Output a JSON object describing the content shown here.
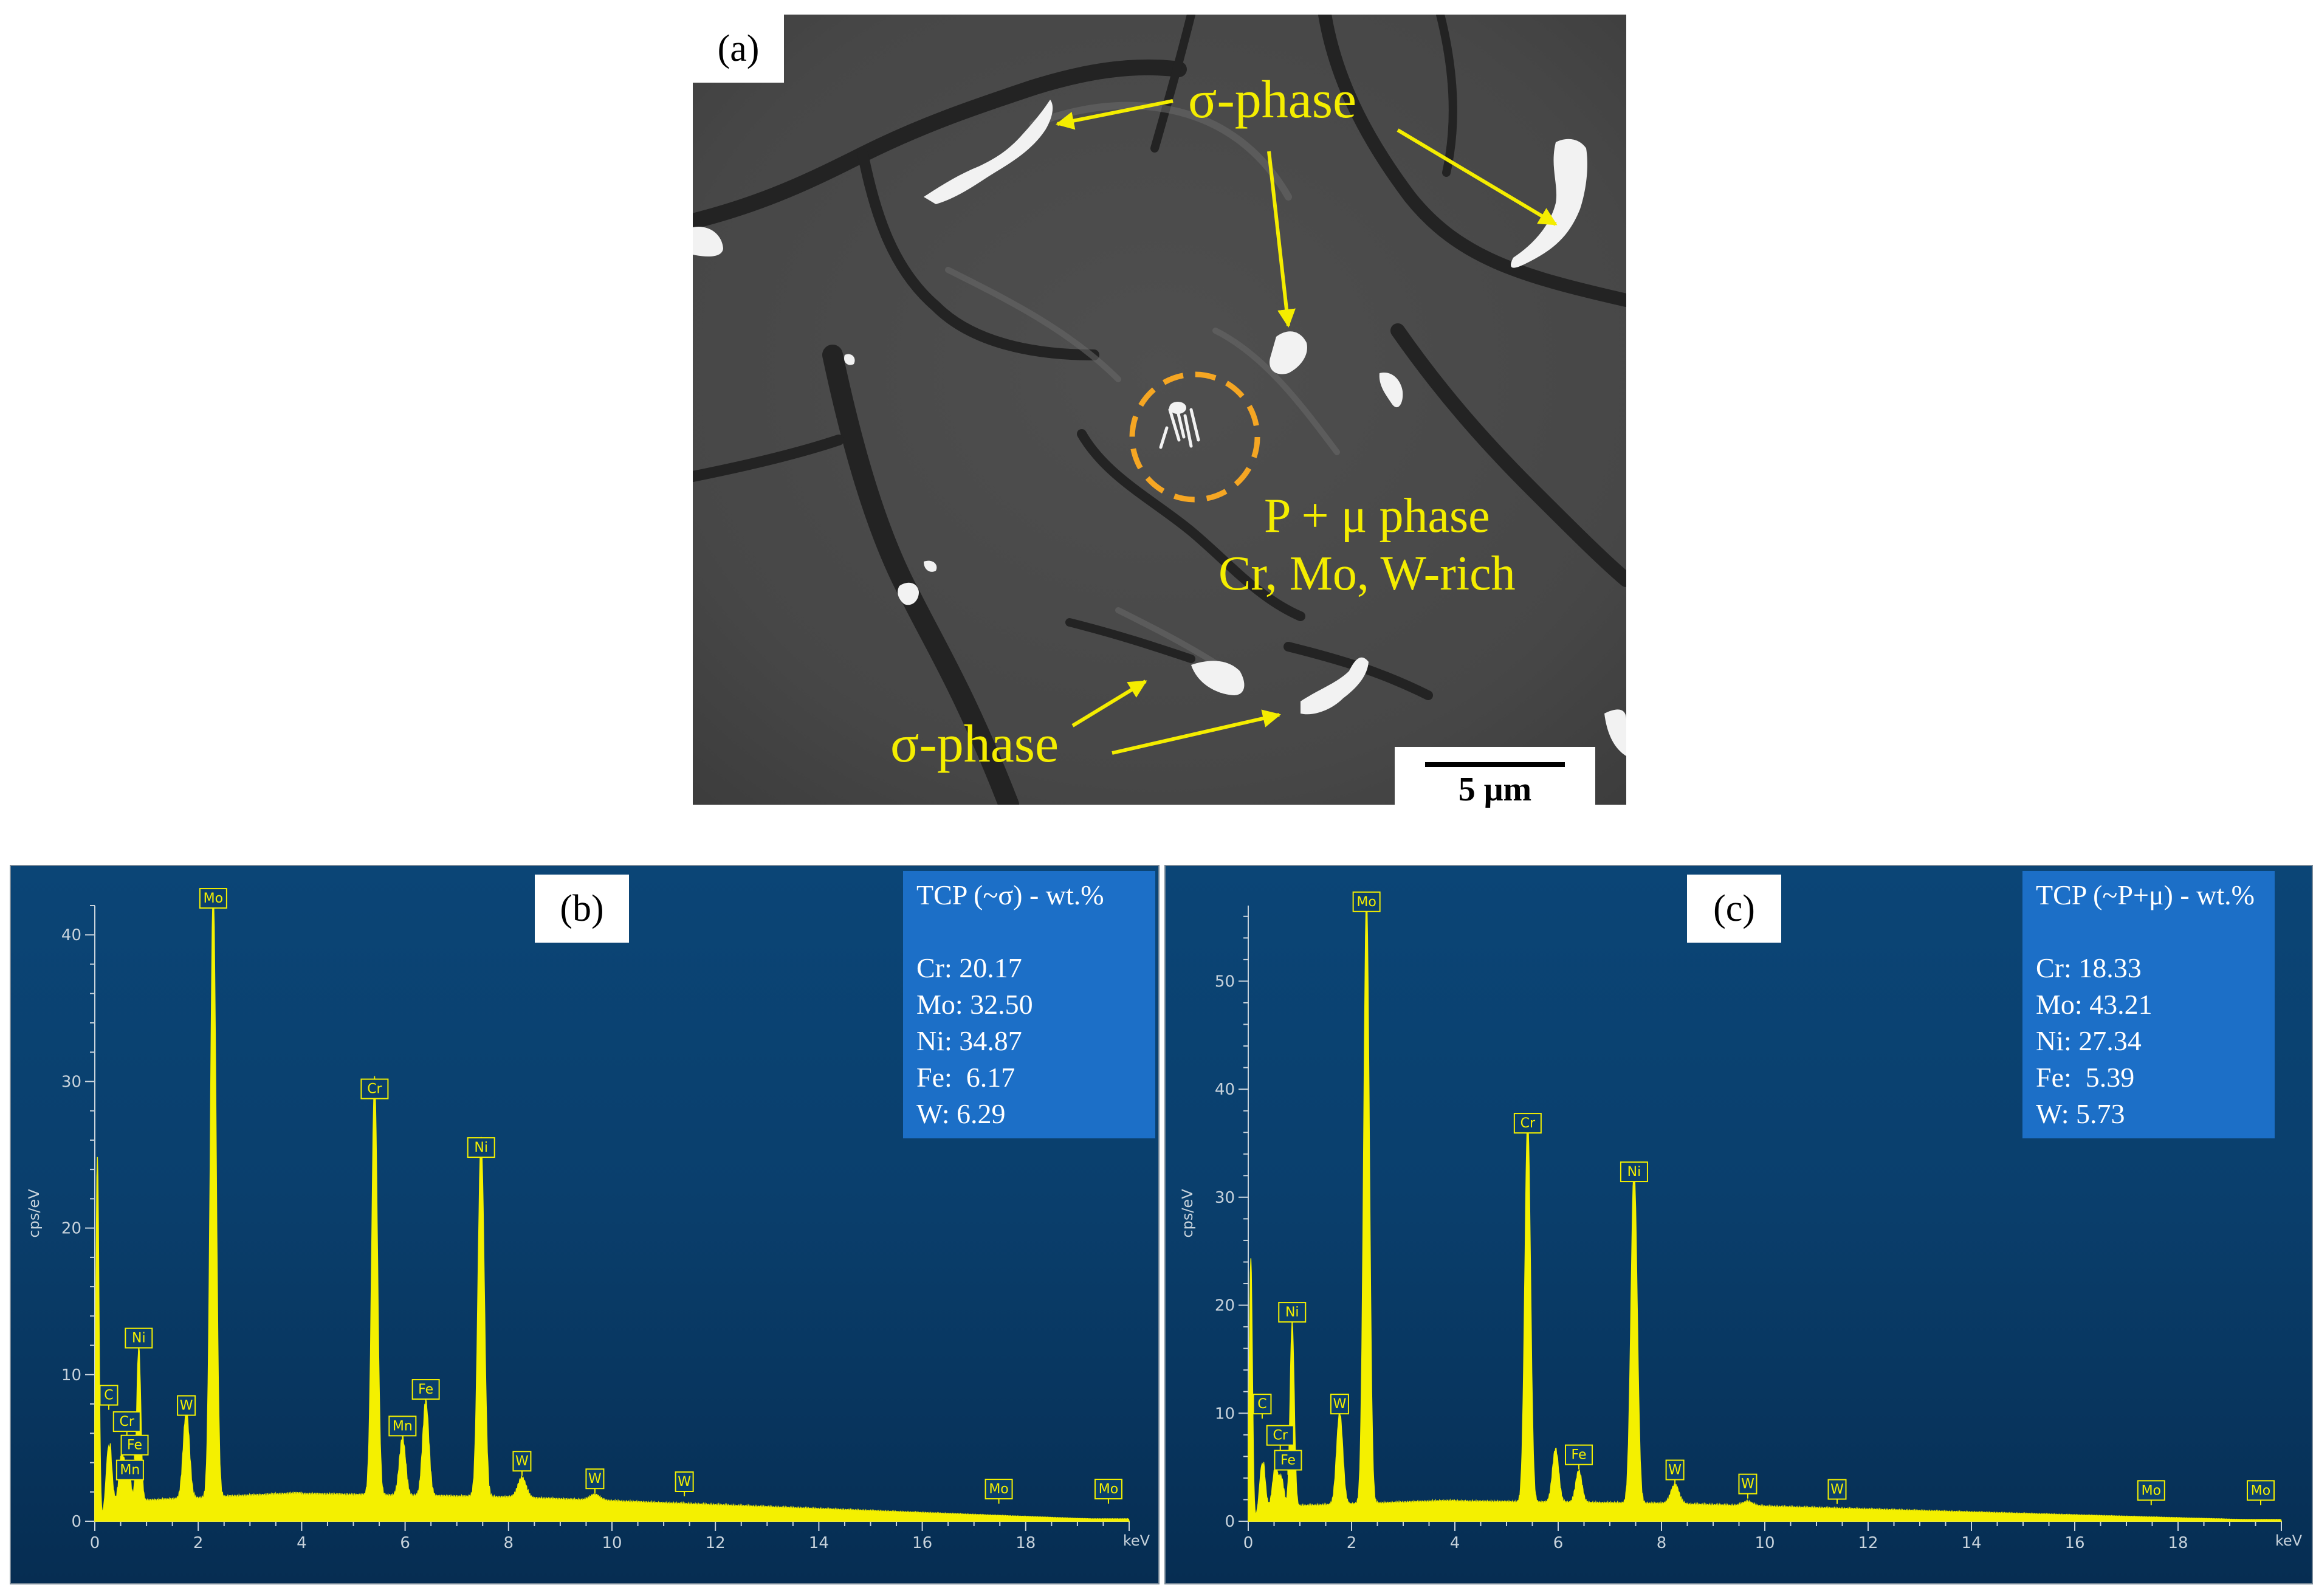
{
  "panel_a": {
    "letter": "(a)",
    "sigma_top": "σ-phase",
    "sigma_bottom": "σ-phase",
    "p_mu_line1": "P + μ phase",
    "p_mu_line2": "Cr, Mo, W-rich",
    "scale_label": "5 μm"
  },
  "chart_data": [
    {
      "type": "line",
      "panel_letter": "(b)",
      "ylabel": "cps/eV",
      "xlabel": "keV",
      "xlim": [
        0,
        20
      ],
      "ylim": [
        0,
        42
      ],
      "x_ticks": [
        0,
        2,
        4,
        6,
        8,
        10,
        12,
        14,
        16,
        18
      ],
      "y_ticks": [
        0,
        10,
        20,
        30,
        40
      ],
      "composition_title": "TCP (~σ) - wt.%",
      "composition": [
        "Cr: 20.17",
        "Mo: 32.50",
        "Ni: 34.87",
        "Fe:  6.17",
        "W: 6.29"
      ],
      "peaks": [
        {
          "x": 0.05,
          "y": 24.5,
          "w": 0.03
        },
        {
          "x": 0.27,
          "y": 4.8,
          "w": 0.05
        },
        {
          "x": 0.52,
          "y": 3.2,
          "w": 0.05
        },
        {
          "x": 0.64,
          "y": 2.5,
          "w": 0.05
        },
        {
          "x": 0.85,
          "y": 10.5,
          "w": 0.04
        },
        {
          "x": 1.77,
          "y": 6.0,
          "w": 0.06
        },
        {
          "x": 2.29,
          "y": 41.5,
          "w": 0.055
        },
        {
          "x": 5.41,
          "y": 28.5,
          "w": 0.055
        },
        {
          "x": 5.95,
          "y": 4.0,
          "w": 0.06
        },
        {
          "x": 6.4,
          "y": 6.5,
          "w": 0.06
        },
        {
          "x": 7.47,
          "y": 24.5,
          "w": 0.06
        },
        {
          "x": 8.26,
          "y": 1.4,
          "w": 0.08
        },
        {
          "x": 9.67,
          "y": 0.4,
          "w": 0.1
        }
      ],
      "peak_labels": [
        {
          "label": "Mo",
          "x": 2.29,
          "y": 41.5
        },
        {
          "label": "Cr",
          "x": 5.41,
          "y": 28.5
        },
        {
          "label": "Ni",
          "x": 7.47,
          "y": 24.5
        },
        {
          "label": "Ni",
          "x": 0.85,
          "y": 11.5
        },
        {
          "label": "C",
          "x": 0.27,
          "y": 7.6
        },
        {
          "label": "Cr",
          "x": 0.62,
          "y": 5.8
        },
        {
          "label": "Fe",
          "x": 0.77,
          "y": 4.2
        },
        {
          "label": "Mn",
          "x": 0.68,
          "y": 2.5
        },
        {
          "label": "W",
          "x": 1.77,
          "y": 6.9
        },
        {
          "label": "Mn",
          "x": 5.95,
          "y": 5.5
        },
        {
          "label": "Fe",
          "x": 6.4,
          "y": 8.0
        },
        {
          "label": "W",
          "x": 8.26,
          "y": 3.1
        },
        {
          "label": "W",
          "x": 9.67,
          "y": 1.9
        },
        {
          "label": "W",
          "x": 11.4,
          "y": 1.7
        },
        {
          "label": "Mo",
          "x": 17.48,
          "y": 1.2
        },
        {
          "label": "Mo",
          "x": 19.6,
          "y": 1.2
        }
      ]
    },
    {
      "type": "line",
      "panel_letter": "(c)",
      "ylabel": "cps/eV",
      "xlabel": "keV",
      "xlim": [
        0,
        20
      ],
      "ylim": [
        0,
        57
      ],
      "x_ticks": [
        0,
        2,
        4,
        6,
        8,
        10,
        12,
        14,
        16,
        18
      ],
      "y_ticks": [
        0,
        10,
        20,
        30,
        40,
        50
      ],
      "composition_title": "TCP (~P+μ) - wt.%",
      "composition": [
        "Cr: 18.33",
        "Mo: 43.21",
        "Ni: 27.34",
        "Fe:  5.39",
        "W: 5.73"
      ],
      "peaks": [
        {
          "x": 0.05,
          "y": 24.0,
          "w": 0.03
        },
        {
          "x": 0.27,
          "y": 5.0,
          "w": 0.05
        },
        {
          "x": 0.52,
          "y": 3.5,
          "w": 0.05
        },
        {
          "x": 0.64,
          "y": 2.6,
          "w": 0.05
        },
        {
          "x": 0.85,
          "y": 17.0,
          "w": 0.04
        },
        {
          "x": 1.77,
          "y": 8.5,
          "w": 0.06
        },
        {
          "x": 2.29,
          "y": 56.0,
          "w": 0.055
        },
        {
          "x": 5.41,
          "y": 35.5,
          "w": 0.055
        },
        {
          "x": 5.95,
          "y": 5.0,
          "w": 0.06
        },
        {
          "x": 6.4,
          "y": 3.0,
          "w": 0.06
        },
        {
          "x": 7.47,
          "y": 31.0,
          "w": 0.06
        },
        {
          "x": 8.26,
          "y": 1.8,
          "w": 0.08
        },
        {
          "x": 9.67,
          "y": 0.4,
          "w": 0.1
        }
      ],
      "peak_labels": [
        {
          "label": "Mo",
          "x": 2.29,
          "y": 56.0
        },
        {
          "label": "Cr",
          "x": 5.41,
          "y": 35.5
        },
        {
          "label": "Ni",
          "x": 7.47,
          "y": 31.0
        },
        {
          "label": "Ni",
          "x": 0.85,
          "y": 18.0
        },
        {
          "label": "C",
          "x": 0.27,
          "y": 9.5
        },
        {
          "label": "Cr",
          "x": 0.62,
          "y": 6.6
        },
        {
          "label": "Fe",
          "x": 0.77,
          "y": 4.3
        },
        {
          "label": "W",
          "x": 1.77,
          "y": 9.5
        },
        {
          "label": "Fe",
          "x": 6.4,
          "y": 4.8
        },
        {
          "label": "W",
          "x": 8.26,
          "y": 3.4
        },
        {
          "label": "W",
          "x": 9.67,
          "y": 2.1
        },
        {
          "label": "W",
          "x": 11.4,
          "y": 1.6
        },
        {
          "label": "Mo",
          "x": 17.48,
          "y": 1.5
        },
        {
          "label": "Mo",
          "x": 19.6,
          "y": 1.5
        }
      ]
    }
  ]
}
